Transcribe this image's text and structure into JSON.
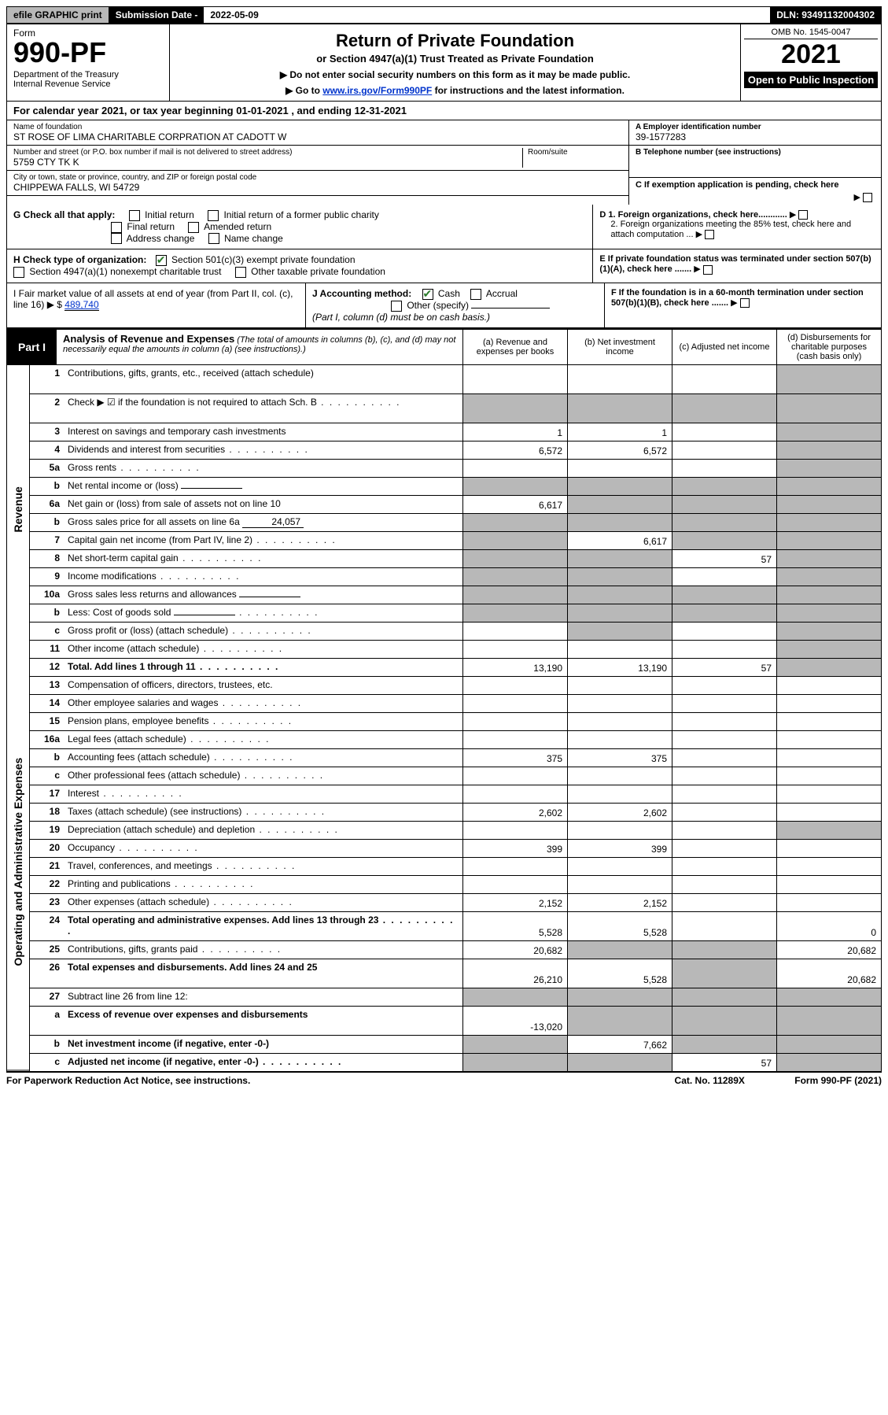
{
  "topbar": {
    "efile": "efile GRAPHIC print",
    "sub_date_lbl": "Submission Date - ",
    "sub_date": "2022-05-09",
    "dln": "DLN: 93491132004302"
  },
  "header": {
    "form_lbl": "Form",
    "form_num": "990-PF",
    "dept1": "Department of the Treasury",
    "dept2": "Internal Revenue Service",
    "title": "Return of Private Foundation",
    "subtitle": "or Section 4947(a)(1) Trust Treated as Private Foundation",
    "note1": "▶ Do not enter social security numbers on this form as it may be made public.",
    "note2_pre": "▶ Go to ",
    "note2_link": "www.irs.gov/Form990PF",
    "note2_post": " for instructions and the latest information.",
    "omb": "OMB No. 1545-0047",
    "year": "2021",
    "open_pub": "Open to Public Inspection"
  },
  "calyear": "For calendar year 2021, or tax year beginning 01-01-2021                         , and ending 12-31-2021",
  "entity": {
    "name_lbl": "Name of foundation",
    "name": "ST ROSE OF LIMA CHARITABLE CORPRATION AT CADOTT W",
    "addr_lbl": "Number and street (or P.O. box number if mail is not delivered to street address)",
    "addr": "5759 CTY TK K",
    "room_lbl": "Room/suite",
    "city_lbl": "City or town, state or province, country, and ZIP or foreign postal code",
    "city": "CHIPPEWA FALLS, WI  54729",
    "ein_lbl": "A Employer identification number",
    "ein": "39-1577283",
    "phone_lbl": "B Telephone number (see instructions)",
    "c_lbl": "C If exemption application is pending, check here",
    "d1_lbl": "D 1. Foreign organizations, check here............",
    "d2_lbl": "2. Foreign organizations meeting the 85% test, check here and attach computation ...",
    "e_lbl": "E  If private foundation status was terminated under section 507(b)(1)(A), check here .......",
    "f_lbl": "F  If the foundation is in a 60-month termination under section 507(b)(1)(B), check here .......",
    "g_lbl": "G Check all that apply:",
    "g_opts": [
      "Initial return",
      "Initial return of a former public charity",
      "Final return",
      "Amended return",
      "Address change",
      "Name change"
    ],
    "h_lbl": "H Check type of organization:",
    "h_opts": [
      "Section 501(c)(3) exempt private foundation",
      "Section 4947(a)(1) nonexempt charitable trust",
      "Other taxable private foundation"
    ],
    "i_lbl": "I Fair market value of all assets at end of year (from Part II, col. (c), line 16) ▶ $",
    "i_val": "489,740",
    "j_lbl": "J Accounting method:",
    "j_opts": [
      "Cash",
      "Accrual",
      "Other (specify)"
    ],
    "j_note": "(Part I, column (d) must be on cash basis.)"
  },
  "part1": {
    "label": "Part I",
    "title": "Analysis of Revenue and Expenses",
    "title_note": " (The total of amounts in columns (b), (c), and (d) may not necessarily equal the amounts in column (a) (see instructions).)",
    "cols": {
      "a": "(a)   Revenue and expenses per books",
      "b": "(b)   Net investment income",
      "c": "(c)   Adjusted net income",
      "d": "(d)   Disbursements for charitable purposes (cash basis only)"
    }
  },
  "side": {
    "rev": "Revenue",
    "exp": "Operating and Administrative Expenses"
  },
  "rows": [
    {
      "n": "1",
      "d": "Contributions, gifts, grants, etc., received (attach schedule)",
      "tall": true,
      "shade_d": true
    },
    {
      "n": "2",
      "d": "Check ▶ ☑ if the foundation is not required to attach Sch. B",
      "dots": true,
      "tall": true,
      "all_shade": true
    },
    {
      "n": "3",
      "d": "Interest on savings and temporary cash investments",
      "a": "1",
      "b": "1",
      "shade_d": true
    },
    {
      "n": "4",
      "d": "Dividends and interest from securities",
      "dots": true,
      "a": "6,572",
      "b": "6,572",
      "shade_d": true
    },
    {
      "n": "5a",
      "d": "Gross rents",
      "dots": true,
      "shade_d": true
    },
    {
      "n": "b",
      "d": "Net rental income or (loss)",
      "inline": true,
      "all_shade": true
    },
    {
      "n": "6a",
      "d": "Net gain or (loss) from sale of assets not on line 10",
      "a": "6,617",
      "shade_bcd": true
    },
    {
      "n": "b",
      "d": "Gross sales price for all assets on line 6a",
      "inline": true,
      "inline_val": "24,057",
      "all_shade": true
    },
    {
      "n": "7",
      "d": "Capital gain net income (from Part IV, line 2)",
      "dots": true,
      "b": "6,617",
      "shade_a": true,
      "shade_cd": true
    },
    {
      "n": "8",
      "d": "Net short-term capital gain",
      "dots": true,
      "c": "57",
      "shade_ab": true,
      "shade_d": true
    },
    {
      "n": "9",
      "d": "Income modifications",
      "dots": true,
      "shade_ab": true,
      "shade_d": true
    },
    {
      "n": "10a",
      "d": "Gross sales less returns and allowances",
      "inline": true,
      "all_shade": true
    },
    {
      "n": "b",
      "d": "Less: Cost of goods sold",
      "dots": true,
      "inline": true,
      "all_shade": true
    },
    {
      "n": "c",
      "d": "Gross profit or (loss) (attach schedule)",
      "dots": true,
      "shade_b": true,
      "shade_d": true
    },
    {
      "n": "11",
      "d": "Other income (attach schedule)",
      "dots": true,
      "shade_d": true
    },
    {
      "n": "12",
      "d": "Total. Add lines 1 through 11",
      "dots": true,
      "bold": true,
      "a": "13,190",
      "b": "13,190",
      "c": "57",
      "shade_d": true
    }
  ],
  "exp_rows": [
    {
      "n": "13",
      "d": "Compensation of officers, directors, trustees, etc."
    },
    {
      "n": "14",
      "d": "Other employee salaries and wages",
      "dots": true
    },
    {
      "n": "15",
      "d": "Pension plans, employee benefits",
      "dots": true
    },
    {
      "n": "16a",
      "d": "Legal fees (attach schedule)",
      "dots": true
    },
    {
      "n": "b",
      "d": "Accounting fees (attach schedule)",
      "dots": true,
      "a": "375",
      "b": "375"
    },
    {
      "n": "c",
      "d": "Other professional fees (attach schedule)",
      "dots": true
    },
    {
      "n": "17",
      "d": "Interest",
      "dots": true
    },
    {
      "n": "18",
      "d": "Taxes (attach schedule) (see instructions)",
      "dots": true,
      "a": "2,602",
      "b": "2,602"
    },
    {
      "n": "19",
      "d": "Depreciation (attach schedule) and depletion",
      "dots": true,
      "shade_d": true
    },
    {
      "n": "20",
      "d": "Occupancy",
      "dots": true,
      "a": "399",
      "b": "399"
    },
    {
      "n": "21",
      "d": "Travel, conferences, and meetings",
      "dots": true
    },
    {
      "n": "22",
      "d": "Printing and publications",
      "dots": true
    },
    {
      "n": "23",
      "d": "Other expenses (attach schedule)",
      "dots": true,
      "a": "2,152",
      "b": "2,152"
    },
    {
      "n": "24",
      "d": "Total operating and administrative expenses. Add lines 13 through 23",
      "dots": true,
      "bold": true,
      "tall": true,
      "a": "5,528",
      "b": "5,528",
      "dval": "0"
    },
    {
      "n": "25",
      "d": "Contributions, gifts, grants paid",
      "dots": true,
      "a": "20,682",
      "shade_bc": true,
      "dval": "20,682"
    },
    {
      "n": "26",
      "d": "Total expenses and disbursements. Add lines 24 and 25",
      "bold": true,
      "tall": true,
      "a": "26,210",
      "b": "5,528",
      "shade_c": true,
      "dval": "20,682"
    },
    {
      "n": "27",
      "d": "Subtract line 26 from line 12:",
      "all_shade": true
    },
    {
      "n": "a",
      "d": "Excess of revenue over expenses and disbursements",
      "bold": true,
      "tall": true,
      "a": "-13,020",
      "shade_bcd": true
    },
    {
      "n": "b",
      "d": "Net investment income (if negative, enter -0-)",
      "bold": true,
      "b": "7,662",
      "shade_a": true,
      "shade_cd": true
    },
    {
      "n": "c",
      "d": "Adjusted net income (if negative, enter -0-)",
      "dots": true,
      "bold": true,
      "c": "57",
      "shade_ab": true,
      "shade_d": true
    }
  ],
  "footer": {
    "left": "For Paperwork Reduction Act Notice, see instructions.",
    "cat": "Cat. No. 11289X",
    "form": "Form 990-PF (2021)"
  }
}
